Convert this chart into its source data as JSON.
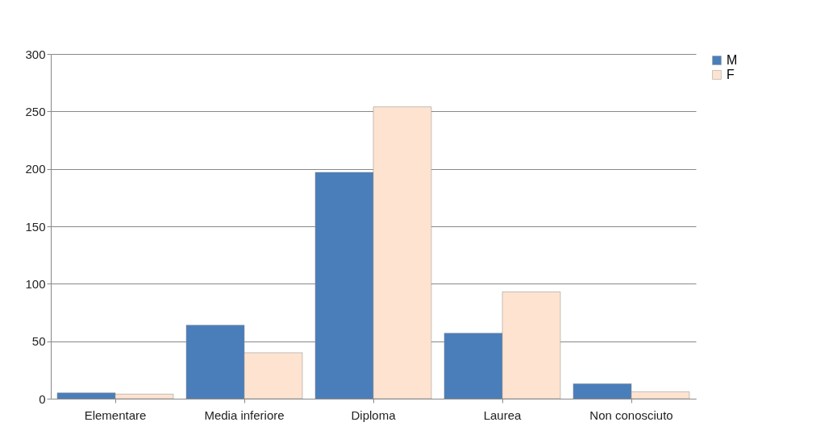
{
  "chart_data": {
    "type": "bar",
    "categories": [
      "Elementare",
      "Media inferiore",
      "Diploma",
      "Laurea",
      "Non conosciuto"
    ],
    "series": [
      {
        "name": "M",
        "color": "#4a7ebb",
        "values": [
          5,
          64,
          197,
          57,
          13
        ]
      },
      {
        "name": "F",
        "color": "#fde3d0",
        "values": [
          4,
          40,
          254,
          93,
          6
        ]
      }
    ],
    "ylim": [
      0,
      300
    ],
    "yticks": [
      0,
      50,
      100,
      150,
      200,
      250,
      300
    ],
    "grid": "y",
    "legend": "right"
  }
}
